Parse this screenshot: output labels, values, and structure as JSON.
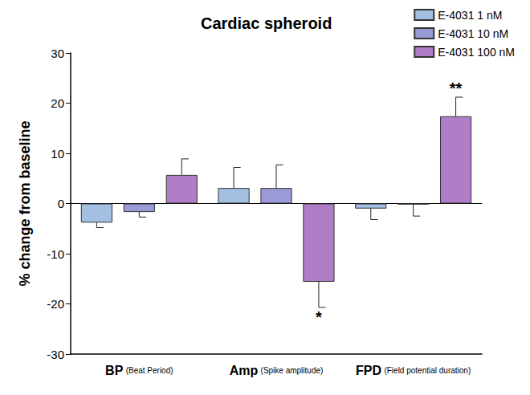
{
  "chart_data": {
    "type": "bar",
    "title": "Cardiac spheroid",
    "y_label": "% change from baseline",
    "categories": [
      "BP (Beat Period)",
      "Amp (Spike amplitude)",
      "FPD (Field potential duration)"
    ],
    "series": [
      {
        "name": "E-4031 1 nM",
        "color": "#a3c0e3",
        "values": [
          -3.8,
          3.1,
          -1.0
        ],
        "errors": [
          1.0,
          4.1,
          2.2
        ]
      },
      {
        "name": "E-4031 10 nM",
        "color": "#9b9ad8",
        "values": [
          -1.7,
          3.1,
          -0.2
        ],
        "errors": [
          1.0,
          4.6,
          2.3
        ]
      },
      {
        "name": "E-4031 100 nM",
        "color": "#b07dc6",
        "values": [
          5.7,
          -15.6,
          17.4
        ],
        "errors": [
          3.2,
          5.1,
          3.8
        ]
      }
    ],
    "annotations": [
      {
        "text": "*",
        "series": "E-4031 100 nM",
        "category": "Amp (Spike amplitude)"
      },
      {
        "text": "**",
        "series": "E-4031 100 nM",
        "category": "FPD (Field potential duration)"
      }
    ],
    "ylim": [
      -30,
      30
    ],
    "yticks": [
      -30,
      -20,
      -10,
      0,
      10,
      20,
      30
    ],
    "grid": false,
    "legend": "upper right"
  }
}
